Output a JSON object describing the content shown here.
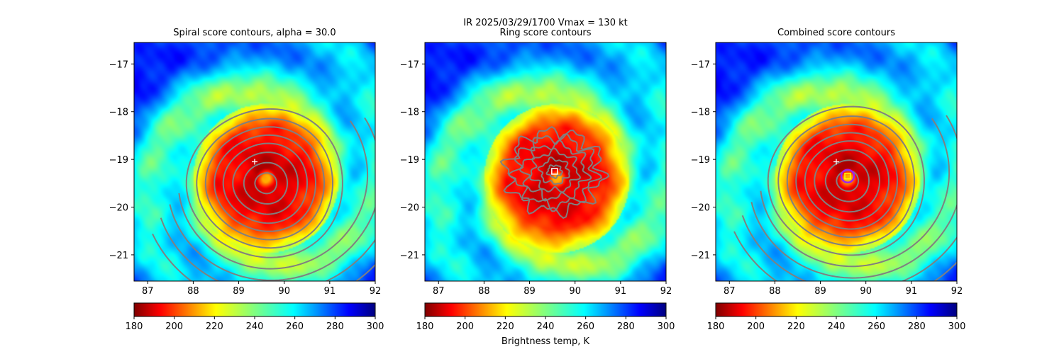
{
  "chart_data": {
    "type": "heatmap",
    "suptitle_line1": "IR  2025/03/29/1700    Vmax = 130 kt",
    "colorbar_label": "Brightness temp, K",
    "x_range": [
      86.7,
      92.0
    ],
    "y_range": [
      -21.55,
      -16.55
    ],
    "x_ticks": [
      87,
      88,
      89,
      90,
      91,
      92
    ],
    "y_ticks": [
      -17,
      -18,
      -19,
      -20,
      -21
    ],
    "x_tick_labels": [
      "87",
      "88",
      "89",
      "90",
      "91",
      "92"
    ],
    "y_tick_labels": [
      "−17",
      "−18",
      "−19",
      "−20",
      "−21"
    ],
    "colorbar_range": [
      180,
      300
    ],
    "colorbar_ticks": [
      180,
      200,
      220,
      240,
      260,
      280,
      300
    ],
    "colorbar_tick_labels": [
      "180",
      "200",
      "220",
      "240",
      "260",
      "280",
      "300"
    ],
    "colormap": "jet_r",
    "storm": {
      "center_lon": 89.6,
      "center_lat": -19.4,
      "eye_temp_K": 212,
      "eyewall_temp_K": 188,
      "ambient_temp_K": 268
    },
    "panels": [
      {
        "title": "Spiral score contours, alpha = 30.0",
        "contour_type": "spiral",
        "contour_color": "#808080",
        "contour_center": [
          89.6,
          -19.5
        ],
        "first_guess": {
          "lon": 89.35,
          "lat": -19.05,
          "marker": "+",
          "color": "#ffffff"
        }
      },
      {
        "title": "Ring score contours",
        "contour_type": "ring",
        "contour_color": "#808080",
        "contour_center": [
          89.55,
          -19.25
        ],
        "ring_center": {
          "lon": 89.55,
          "lat": -19.25,
          "marker": "square",
          "color": "#ffffff"
        }
      },
      {
        "title": "Combined score contours",
        "contour_type": "spiral",
        "contour_color": "#808080",
        "contour_center": [
          89.6,
          -19.45
        ],
        "first_guess": {
          "lon": 89.35,
          "lat": -19.05,
          "marker": "+",
          "color": "#ffffff"
        },
        "combined_center": {
          "lon": 89.6,
          "lat": -19.35,
          "marker": "circle",
          "color": "#a020f0"
        },
        "best_center": {
          "lon": 89.6,
          "lat": -19.35,
          "marker": "square",
          "color": "#ffff00"
        }
      }
    ]
  }
}
